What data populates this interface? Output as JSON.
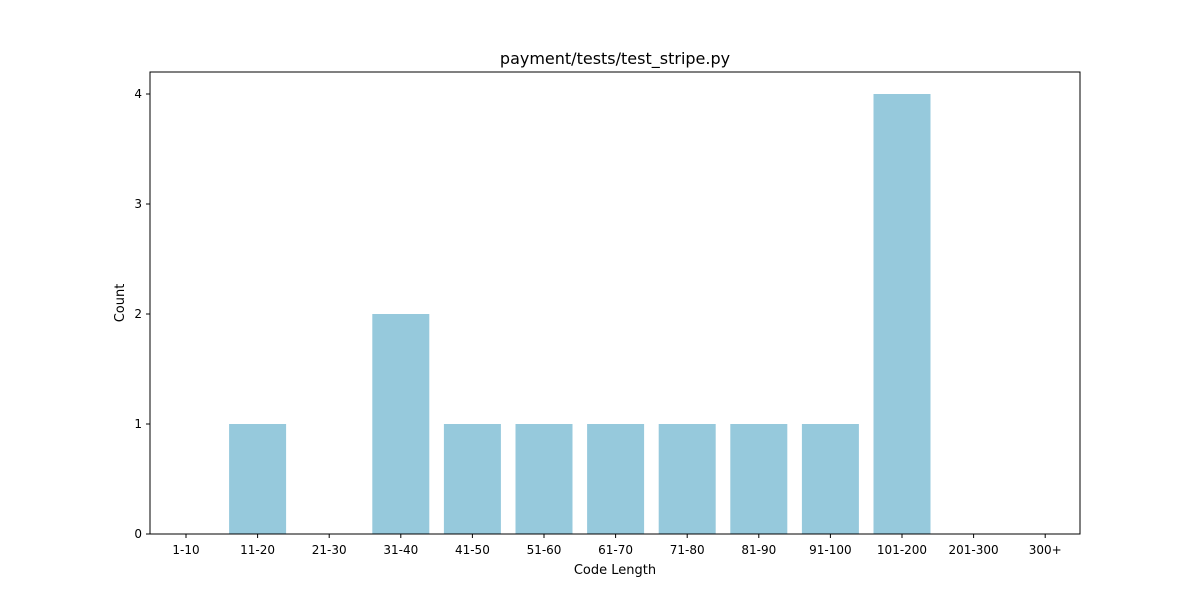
{
  "chart_data": {
    "type": "bar",
    "title": "payment/tests/test_stripe.py",
    "xlabel": "Code Length",
    "ylabel": "Count",
    "categories": [
      "1-10",
      "11-20",
      "21-30",
      "31-40",
      "41-50",
      "51-60",
      "61-70",
      "71-80",
      "81-90",
      "91-100",
      "101-200",
      "201-300",
      "300+"
    ],
    "values": [
      0,
      1,
      0,
      2,
      1,
      1,
      1,
      1,
      1,
      1,
      4,
      0,
      0
    ],
    "yticks": [
      0,
      1,
      2,
      3,
      4
    ],
    "ylim": [
      0,
      4.2
    ],
    "bar_color": "#96c9dc",
    "grid": false,
    "legend": "none"
  }
}
